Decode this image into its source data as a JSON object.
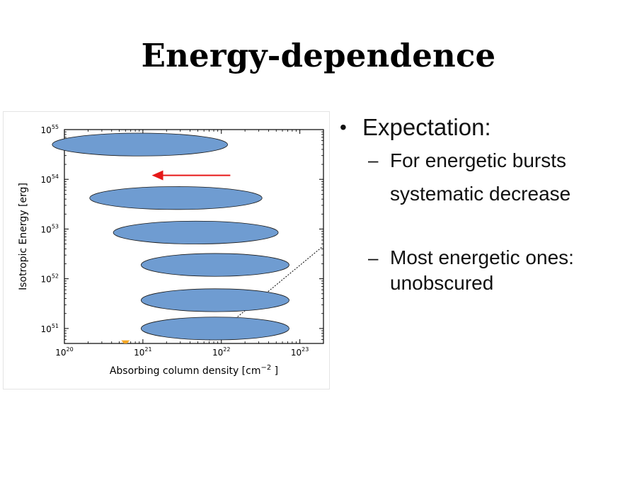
{
  "slide": {
    "title": "Energy-dependence",
    "bullets": [
      {
        "text": "Expectation:",
        "subitems": [
          {
            "lines": [
              "For energetic bursts",
              "systematic decrease"
            ]
          },
          {
            "lines": [
              "Most energetic ones:",
              "unobscured"
            ]
          }
        ]
      }
    ]
  },
  "chart_data": {
    "type": "scatter",
    "xlabel": "Absorbing column density [cm",
    "xlabel_sup": "−2",
    "xlabel_end": " ]",
    "ylabel": "Isotropic Energy [erg]",
    "x_scale": "log",
    "y_scale": "log",
    "xlim": [
      1e+20,
      2e+23
    ],
    "ylim": [
      5e+50,
      1e+55
    ],
    "x_ticks": [
      {
        "value": 1e+20,
        "base": "10",
        "exp": "20"
      },
      {
        "value": 1e+21,
        "base": "10",
        "exp": "21"
      },
      {
        "value": 1e+22,
        "base": "10",
        "exp": "22"
      },
      {
        "value": 1e+23,
        "base": "10",
        "exp": "23"
      }
    ],
    "y_ticks": [
      {
        "value": 1e+51,
        "base": "10",
        "exp": "51"
      },
      {
        "value": 1e+52,
        "base": "10",
        "exp": "52"
      },
      {
        "value": 1e+53,
        "base": "10",
        "exp": "53"
      },
      {
        "value": 1e+54,
        "base": "10",
        "exp": "54"
      },
      {
        "value": 1e+55,
        "base": "10",
        "exp": "55"
      }
    ],
    "ellipse_color": "#6f9cd1",
    "ellipses": [
      {
        "x_min": 7e+19,
        "x_max": 1.2e+22,
        "y": 5e+54
      },
      {
        "x_min": 2.1e+20,
        "x_max": 3.3e+22,
        "y": 4.2e+53
      },
      {
        "x_min": 4.2e+20,
        "x_max": 5.3e+22,
        "y": 8.5e+52
      },
      {
        "x_min": 9.5e+20,
        "x_max": 7.3e+22,
        "y": 1.9e+52
      },
      {
        "x_min": 9.5e+20,
        "x_max": 7.3e+22,
        "y": 3.7e+51
      },
      {
        "x_min": 9.5e+20,
        "x_max": 7.3e+22,
        "y": 1e+51
      }
    ],
    "ellipse_height_dex": 0.46,
    "arrow": {
      "color": "#e61919",
      "x_from": 1.3e+22,
      "x_to": 1.3e+21,
      "y": 1.2e+54
    },
    "dotted_line": {
      "from": [
        7e+21,
        5.8e+50
      ],
      "to": [
        1.9e+23,
        4.3e+52
      ]
    },
    "marker": {
      "color": "#f5a623",
      "x": 6e+20,
      "y": 5.4e+50
    }
  }
}
